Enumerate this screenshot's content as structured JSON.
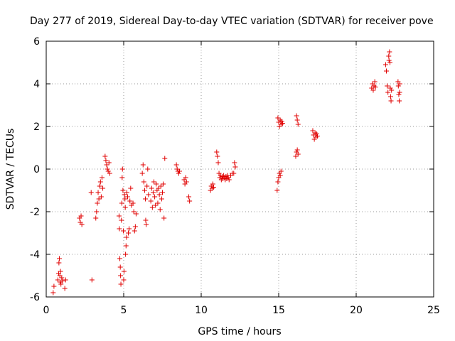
{
  "chart_data": {
    "type": "scatter",
    "title": "Day 277 of 2019, Sidereal Day-to-day VTEC variation (SDTVAR) for receiver pove",
    "xlabel": "GPS time / hours",
    "ylabel": "SDTVAR / TECUs",
    "xlim": [
      0,
      25
    ],
    "ylim": [
      -6,
      6
    ],
    "xticks": [
      0,
      5,
      10,
      15,
      20,
      25
    ],
    "yticks": [
      -6,
      -4,
      -2,
      0,
      2,
      4,
      6
    ],
    "grid": true,
    "marker": "+",
    "color": "#e00000",
    "series": [
      {
        "name": "SDTVAR",
        "points": [
          [
            0.45,
            -5.8
          ],
          [
            0.5,
            -5.5
          ],
          [
            0.75,
            -5.2
          ],
          [
            0.8,
            -4.9
          ],
          [
            0.82,
            -4.4
          ],
          [
            0.85,
            -4.2
          ],
          [
            0.88,
            -5.0
          ],
          [
            0.9,
            -5.3
          ],
          [
            0.92,
            -4.8
          ],
          [
            0.95,
            -5.4
          ],
          [
            1.0,
            -5.1
          ],
          [
            1.05,
            -5.25
          ],
          [
            1.2,
            -5.6
          ],
          [
            1.25,
            -5.2
          ],
          [
            2.15,
            -2.3
          ],
          [
            2.2,
            -2.5
          ],
          [
            2.25,
            -2.2
          ],
          [
            2.3,
            -2.6
          ],
          [
            2.9,
            -1.1
          ],
          [
            2.95,
            -5.2
          ],
          [
            3.2,
            -2.3
          ],
          [
            3.25,
            -2.0
          ],
          [
            3.3,
            -1.6
          ],
          [
            3.35,
            -1.1
          ],
          [
            3.4,
            -1.4
          ],
          [
            3.45,
            -0.8
          ],
          [
            3.5,
            -0.6
          ],
          [
            3.55,
            -1.3
          ],
          [
            3.6,
            -0.4
          ],
          [
            3.65,
            -0.9
          ],
          [
            3.8,
            0.6
          ],
          [
            3.85,
            0.4
          ],
          [
            3.9,
            0.2
          ],
          [
            3.95,
            0.0
          ],
          [
            4.0,
            -0.1
          ],
          [
            4.05,
            0.3
          ],
          [
            4.1,
            -0.2
          ],
          [
            4.7,
            -2.2
          ],
          [
            4.72,
            -2.8
          ],
          [
            4.75,
            -4.2
          ],
          [
            4.78,
            -4.6
          ],
          [
            4.8,
            -5.0
          ],
          [
            4.82,
            -5.4
          ],
          [
            4.85,
            -2.4
          ],
          [
            4.88,
            -1.6
          ],
          [
            4.9,
            -0.4
          ],
          [
            4.92,
            0.0
          ],
          [
            4.95,
            -1.0
          ],
          [
            4.98,
            -2.9
          ],
          [
            5.0,
            -5.2
          ],
          [
            5.02,
            -4.8
          ],
          [
            5.05,
            -1.2
          ],
          [
            5.08,
            -1.4
          ],
          [
            5.1,
            -1.8
          ],
          [
            5.12,
            -4.0
          ],
          [
            5.15,
            -3.6
          ],
          [
            5.18,
            -3.2
          ],
          [
            5.2,
            -1.1
          ],
          [
            5.25,
            -1.3
          ],
          [
            5.3,
            -3.0
          ],
          [
            5.35,
            -2.8
          ],
          [
            5.4,
            -1.5
          ],
          [
            5.45,
            -0.9
          ],
          [
            5.5,
            -1.7
          ],
          [
            5.6,
            -1.6
          ],
          [
            5.65,
            -2.0
          ],
          [
            5.7,
            -2.9
          ],
          [
            5.75,
            -2.7
          ],
          [
            5.8,
            -2.1
          ],
          [
            6.2,
            -0.2
          ],
          [
            6.25,
            0.2
          ],
          [
            6.3,
            -0.6
          ],
          [
            6.35,
            -1.0
          ],
          [
            6.4,
            -1.4
          ],
          [
            6.42,
            -2.4
          ],
          [
            6.45,
            -2.6
          ],
          [
            6.5,
            -0.8
          ],
          [
            6.55,
            0.0
          ],
          [
            6.6,
            -1.2
          ],
          [
            6.75,
            -1.5
          ],
          [
            6.8,
            -0.9
          ],
          [
            6.85,
            -1.8
          ],
          [
            6.9,
            -1.1
          ],
          [
            6.95,
            -0.6
          ],
          [
            7.0,
            -1.3
          ],
          [
            7.05,
            -1.7
          ],
          [
            7.1,
            -0.7
          ],
          [
            7.15,
            -1.0
          ],
          [
            7.2,
            -1.6
          ],
          [
            7.25,
            -0.9
          ],
          [
            7.3,
            -1.2
          ],
          [
            7.35,
            -1.9
          ],
          [
            7.4,
            -0.8
          ],
          [
            7.45,
            -1.4
          ],
          [
            7.5,
            -1.1
          ],
          [
            7.55,
            -0.7
          ],
          [
            7.6,
            -2.3
          ],
          [
            7.65,
            0.5
          ],
          [
            8.4,
            0.2
          ],
          [
            8.45,
            0.0
          ],
          [
            8.5,
            -0.1
          ],
          [
            8.55,
            -0.2
          ],
          [
            8.6,
            -0.1
          ],
          [
            8.9,
            -0.5
          ],
          [
            8.95,
            -0.7
          ],
          [
            9.0,
            -0.4
          ],
          [
            9.05,
            -0.6
          ],
          [
            9.2,
            -1.3
          ],
          [
            9.25,
            -1.5
          ],
          [
            10.6,
            -1.0
          ],
          [
            10.65,
            -0.8
          ],
          [
            10.7,
            -0.9
          ],
          [
            10.75,
            -0.7
          ],
          [
            10.8,
            -0.85
          ],
          [
            11.0,
            0.8
          ],
          [
            11.05,
            0.6
          ],
          [
            11.1,
            0.3
          ],
          [
            11.15,
            -0.2
          ],
          [
            11.2,
            -0.4
          ],
          [
            11.25,
            -0.3
          ],
          [
            11.3,
            -0.5
          ],
          [
            11.35,
            -0.35
          ],
          [
            11.4,
            -0.45
          ],
          [
            11.45,
            -0.3
          ],
          [
            11.5,
            -0.4
          ],
          [
            11.55,
            -0.5
          ],
          [
            11.6,
            -0.35
          ],
          [
            11.65,
            -0.45
          ],
          [
            11.7,
            -0.3
          ],
          [
            11.75,
            -0.4
          ],
          [
            11.8,
            -0.5
          ],
          [
            11.9,
            -0.3
          ],
          [
            12.0,
            -0.2
          ],
          [
            12.1,
            -0.2
          ],
          [
            12.15,
            0.3
          ],
          [
            12.2,
            0.1
          ],
          [
            14.9,
            -1.0
          ],
          [
            14.95,
            -0.6
          ],
          [
            15.0,
            -0.4
          ],
          [
            15.05,
            -0.2
          ],
          [
            15.1,
            -0.3
          ],
          [
            15.15,
            -0.1
          ],
          [
            14.95,
            2.4
          ],
          [
            15.0,
            2.2
          ],
          [
            15.05,
            2.0
          ],
          [
            15.1,
            2.3
          ],
          [
            15.15,
            2.1
          ],
          [
            15.2,
            2.25
          ],
          [
            15.25,
            2.15
          ],
          [
            16.1,
            0.6
          ],
          [
            16.15,
            0.8
          ],
          [
            16.2,
            0.9
          ],
          [
            16.25,
            0.7
          ],
          [
            16.15,
            2.5
          ],
          [
            16.2,
            2.3
          ],
          [
            16.25,
            2.1
          ],
          [
            17.2,
            1.8
          ],
          [
            17.25,
            1.6
          ],
          [
            17.3,
            1.4
          ],
          [
            17.35,
            1.7
          ],
          [
            17.4,
            1.5
          ],
          [
            17.45,
            1.65
          ],
          [
            17.5,
            1.55
          ],
          [
            21.0,
            3.8
          ],
          [
            21.05,
            4.0
          ],
          [
            21.1,
            3.7
          ],
          [
            21.15,
            3.9
          ],
          [
            21.2,
            4.1
          ],
          [
            21.25,
            3.85
          ],
          [
            21.9,
            4.9
          ],
          [
            21.95,
            4.6
          ],
          [
            22.0,
            3.9
          ],
          [
            22.05,
            3.6
          ],
          [
            22.1,
            5.3
          ],
          [
            22.12,
            5.1
          ],
          [
            22.15,
            5.5
          ],
          [
            22.18,
            5.0
          ],
          [
            22.2,
            3.8
          ],
          [
            22.22,
            3.4
          ],
          [
            22.25,
            3.2
          ],
          [
            22.28,
            3.7
          ],
          [
            22.7,
            4.1
          ],
          [
            22.72,
            3.9
          ],
          [
            22.75,
            3.5
          ],
          [
            22.78,
            3.2
          ],
          [
            22.8,
            3.6
          ],
          [
            22.82,
            4.0
          ]
        ]
      }
    ]
  }
}
